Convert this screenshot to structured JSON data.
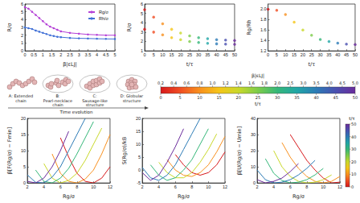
{
  "chart_data": [
    {
      "type": "line",
      "xlabel": "β|εLJ|",
      "ylabel": "R/σ",
      "legend": "upper right",
      "marker": "circle",
      "x": [
        0,
        0.2,
        0.4,
        0.6,
        0.8,
        1.0,
        1.2,
        1.4,
        1.6,
        1.8,
        2.0,
        2.5,
        3.0,
        3.5,
        4.0,
        4.5,
        5.0
      ],
      "xlim": [
        0,
        5
      ],
      "xticks": [
        0,
        0.5,
        1,
        1.5,
        2,
        2.5,
        3,
        3.5,
        4,
        4.5,
        5
      ],
      "ylim": [
        0,
        6
      ],
      "yticks": [
        0,
        1,
        2,
        3,
        4,
        5,
        6
      ],
      "series": [
        {
          "name": "Rg/σ",
          "color": "#b43fd6",
          "values": [
            5.6,
            5.4,
            5.0,
            4.6,
            4.2,
            3.8,
            3.4,
            3.1,
            2.9,
            2.7,
            2.5,
            2.3,
            2.2,
            2.1,
            2.05,
            2.0,
            2.0
          ]
        },
        {
          "name": "Rh/σ",
          "color": "#3f6fd6",
          "values": [
            3.0,
            2.9,
            2.8,
            2.6,
            2.45,
            2.3,
            2.15,
            2.0,
            1.9,
            1.8,
            1.75,
            1.65,
            1.6,
            1.58,
            1.55,
            1.53,
            1.52
          ]
        }
      ]
    },
    {
      "type": "scatter",
      "xlabel": "t/τ",
      "ylabel": "R/σ",
      "marker": "circle",
      "x": [
        0,
        5,
        10,
        15,
        20,
        25,
        30,
        35,
        40,
        45,
        50
      ],
      "xlim": [
        0,
        50
      ],
      "xticks": [
        0,
        5,
        10,
        15,
        20,
        25,
        30,
        35,
        40,
        45,
        50
      ],
      "ylim": [
        1,
        6
      ],
      "yticks": [
        1,
        2,
        3,
        4,
        5,
        6
      ],
      "series": [
        {
          "values": [
            5.4,
            4.6,
            3.9,
            3.3,
            2.9,
            2.6,
            2.4,
            2.3,
            2.2,
            2.15,
            2.1
          ],
          "colors": [
            "#d7191c",
            "#f04e23",
            "#f8901e",
            "#f5c518",
            "#c9d82a",
            "#7ccc4a",
            "#35b779",
            "#21a6a6",
            "#2c7bb6",
            "#4a50b0",
            "#6a2c9c"
          ]
        },
        {
          "values": [
            3.3,
            3.0,
            2.7,
            2.4,
            2.2,
            2.0,
            1.9,
            1.8,
            1.75,
            1.72,
            1.7
          ],
          "colors": [
            "#d7191c",
            "#f04e23",
            "#f8901e",
            "#f5c518",
            "#c9d82a",
            "#7ccc4a",
            "#35b779",
            "#21a6a6",
            "#2c7bb6",
            "#4a50b0",
            "#6a2c9c"
          ]
        }
      ]
    },
    {
      "type": "scatter",
      "xlabel": "t/τ",
      "ylabel": "Rg/Rh",
      "marker": "circle",
      "x": [
        0,
        5,
        10,
        15,
        20,
        25,
        30,
        35,
        40,
        45,
        50
      ],
      "xlim": [
        0,
        50
      ],
      "xticks": [
        0,
        5,
        10,
        15,
        20,
        25,
        30,
        35,
        40,
        45,
        50
      ],
      "ylim": [
        1.2,
        2.1
      ],
      "yticks": [
        1.2,
        1.4,
        1.6,
        1.8,
        {
          "value": 2,
          "label": "2.0"
        }
      ],
      "series": [
        {
          "values": [
            2.0,
            1.98,
            1.9,
            1.75,
            1.6,
            1.5,
            1.42,
            1.38,
            1.35,
            1.33,
            1.32
          ],
          "colors": [
            "#d7191c",
            "#f04e23",
            "#f8901e",
            "#f5c518",
            "#c9d82a",
            "#7ccc4a",
            "#35b779",
            "#21a6a6",
            "#2c7bb6",
            "#4a50b0",
            "#6a2c9c"
          ]
        }
      ]
    },
    {
      "type": "line",
      "xlabel": "Rg/σ",
      "ylabel": "β[F(Rg/σ) − Fmin]",
      "x": [
        2,
        3,
        4,
        5,
        6,
        7,
        8,
        9,
        10,
        11,
        12
      ],
      "xlim": [
        2,
        12
      ],
      "xticks": [
        2,
        4,
        6,
        8,
        10,
        12
      ],
      "ylim": [
        0,
        20
      ],
      "yticks": [
        0,
        5,
        10,
        15,
        20
      ],
      "series": [
        {
          "color": "#d7191c",
          "values": [
            null,
            null,
            null,
            null,
            14,
            8,
            3,
            0.5,
            0,
            1.5,
            5
          ]
        },
        {
          "color": "#f8901e",
          "values": [
            null,
            null,
            null,
            9,
            3,
            0.5,
            0,
            1.2,
            4,
            9,
            15
          ]
        },
        {
          "color": "#c9d82a",
          "values": [
            null,
            null,
            6,
            1.5,
            0,
            0.8,
            3,
            7,
            12,
            17,
            null
          ]
        },
        {
          "color": "#35b779",
          "values": [
            null,
            4,
            0.5,
            0,
            1.5,
            4.5,
            9,
            14,
            19,
            null,
            null
          ]
        },
        {
          "color": "#2c7bb6",
          "values": [
            2.5,
            0.2,
            0,
            1.8,
            5,
            10,
            15,
            20,
            null,
            null,
            null
          ]
        },
        {
          "color": "#6a2c9c",
          "values": [
            0.5,
            0,
            1.5,
            5,
            10,
            16,
            null,
            null,
            null,
            null,
            null
          ]
        }
      ]
    },
    {
      "type": "line",
      "xlabel": "Rg/σ",
      "ylabel": "S(Rg/σ)/kB",
      "x": [
        2,
        3,
        4,
        5,
        6,
        7,
        8,
        9,
        10,
        11,
        12
      ],
      "xlim": [
        2,
        12
      ],
      "xticks": [
        2,
        4,
        6,
        8,
        10,
        12
      ],
      "ylim": [
        -5,
        20
      ],
      "yticks": [
        -5,
        0,
        5,
        10,
        15,
        20
      ],
      "series": [
        {
          "color": "#d7191c",
          "values": [
            null,
            null,
            null,
            null,
            6,
            2,
            -1,
            -2,
            -1,
            2,
            7
          ]
        },
        {
          "color": "#f8901e",
          "values": [
            null,
            null,
            null,
            4,
            0,
            -2,
            -2.5,
            -1,
            2,
            7,
            13
          ]
        },
        {
          "color": "#c9d82a",
          "values": [
            null,
            null,
            3,
            -1,
            -3,
            -3,
            -1,
            3,
            8,
            14,
            null
          ]
        },
        {
          "color": "#35b779",
          "values": [
            null,
            2,
            -2,
            -4,
            -3,
            0,
            4,
            10,
            16,
            null,
            null
          ]
        },
        {
          "color": "#2c7bb6",
          "values": [
            1,
            -3,
            -4,
            -2,
            2,
            8,
            14,
            20,
            null,
            null,
            null
          ]
        },
        {
          "color": "#6a2c9c",
          "values": [
            -1,
            -4,
            -2,
            3,
            9,
            16,
            null,
            null,
            null,
            null,
            null
          ]
        }
      ]
    },
    {
      "type": "line",
      "xlabel": "Rg/σ",
      "ylabel": "β[U(Rg/σ) − Umin]",
      "x": [
        2,
        3,
        4,
        5,
        6,
        7,
        8,
        9,
        10,
        11,
        12
      ],
      "xlim": [
        2,
        12
      ],
      "xticks": [
        2,
        4,
        6,
        8,
        10,
        12
      ],
      "ylim": [
        0,
        40
      ],
      "yticks": [
        0,
        10,
        20,
        30,
        40
      ],
      "series": [
        {
          "color": "#d7191c",
          "values": [
            null,
            null,
            null,
            null,
            30,
            22,
            14,
            8,
            3,
            0,
            0.5
          ]
        },
        {
          "color": "#f8901e",
          "values": [
            null,
            null,
            null,
            25,
            16,
            9,
            4,
            1,
            0,
            1,
            4
          ]
        },
        {
          "color": "#c9d82a",
          "values": [
            null,
            null,
            20,
            10,
            4,
            1,
            0,
            0.5,
            2,
            5,
            null
          ]
        },
        {
          "color": "#35b779",
          "values": [
            null,
            15,
            6,
            1.5,
            0,
            0.5,
            2,
            5,
            9,
            null,
            null
          ]
        },
        {
          "color": "#2c7bb6",
          "values": [
            8,
            2,
            0,
            0.5,
            2,
            5,
            9,
            14,
            null,
            null,
            null
          ]
        },
        {
          "color": "#6a2c9c",
          "values": [
            2,
            0,
            1,
            3,
            7,
            12,
            null,
            null,
            null,
            null,
            null
          ]
        }
      ]
    }
  ],
  "schematic": {
    "structures": [
      "A: Extended chain",
      "B: Pearl-necklace chain",
      "C: Sausage-like structure",
      "D: Globular structure"
    ],
    "time_label": "Time evolution"
  },
  "color_bar": {
    "label": "β|εLJ|",
    "ticks": [
      0.2,
      0.4,
      0.6,
      0.8,
      {
        "value": 1,
        "label": "1.0"
      },
      1.2,
      1.4,
      1.6,
      1.8,
      {
        "value": 2,
        "label": "2.0"
      },
      2.5,
      {
        "value": 3,
        "label": "3.0"
      },
      3.5,
      {
        "value": 4,
        "label": "4.0"
      },
      4.5,
      {
        "value": 5,
        "label": "5.0"
      }
    ],
    "time_label": "t/τ",
    "time_range": [
      0,
      50
    ],
    "time_ticks": [
      0,
      5,
      10,
      15,
      20,
      25,
      30,
      35,
      40,
      45,
      50
    ],
    "colors": [
      "#d7191c",
      "#f04e23",
      "#f8901e",
      "#f5c518",
      "#c9d82a",
      "#7ccc4a",
      "#35b779",
      "#21a6a6",
      "#2c7bb6",
      "#4a50b0",
      "#6a2c9c"
    ]
  },
  "time_color_bar": {
    "label": "t/τ",
    "range": [
      0,
      50
    ],
    "ticks": [
      0,
      10,
      20,
      30,
      40,
      50
    ],
    "colors": [
      "#d7191c",
      "#f04e23",
      "#f8901e",
      "#f5c518",
      "#c9d82a",
      "#7ccc4a",
      "#35b779",
      "#21a6a6",
      "#2c7bb6",
      "#4a50b0",
      "#6a2c9c"
    ]
  }
}
